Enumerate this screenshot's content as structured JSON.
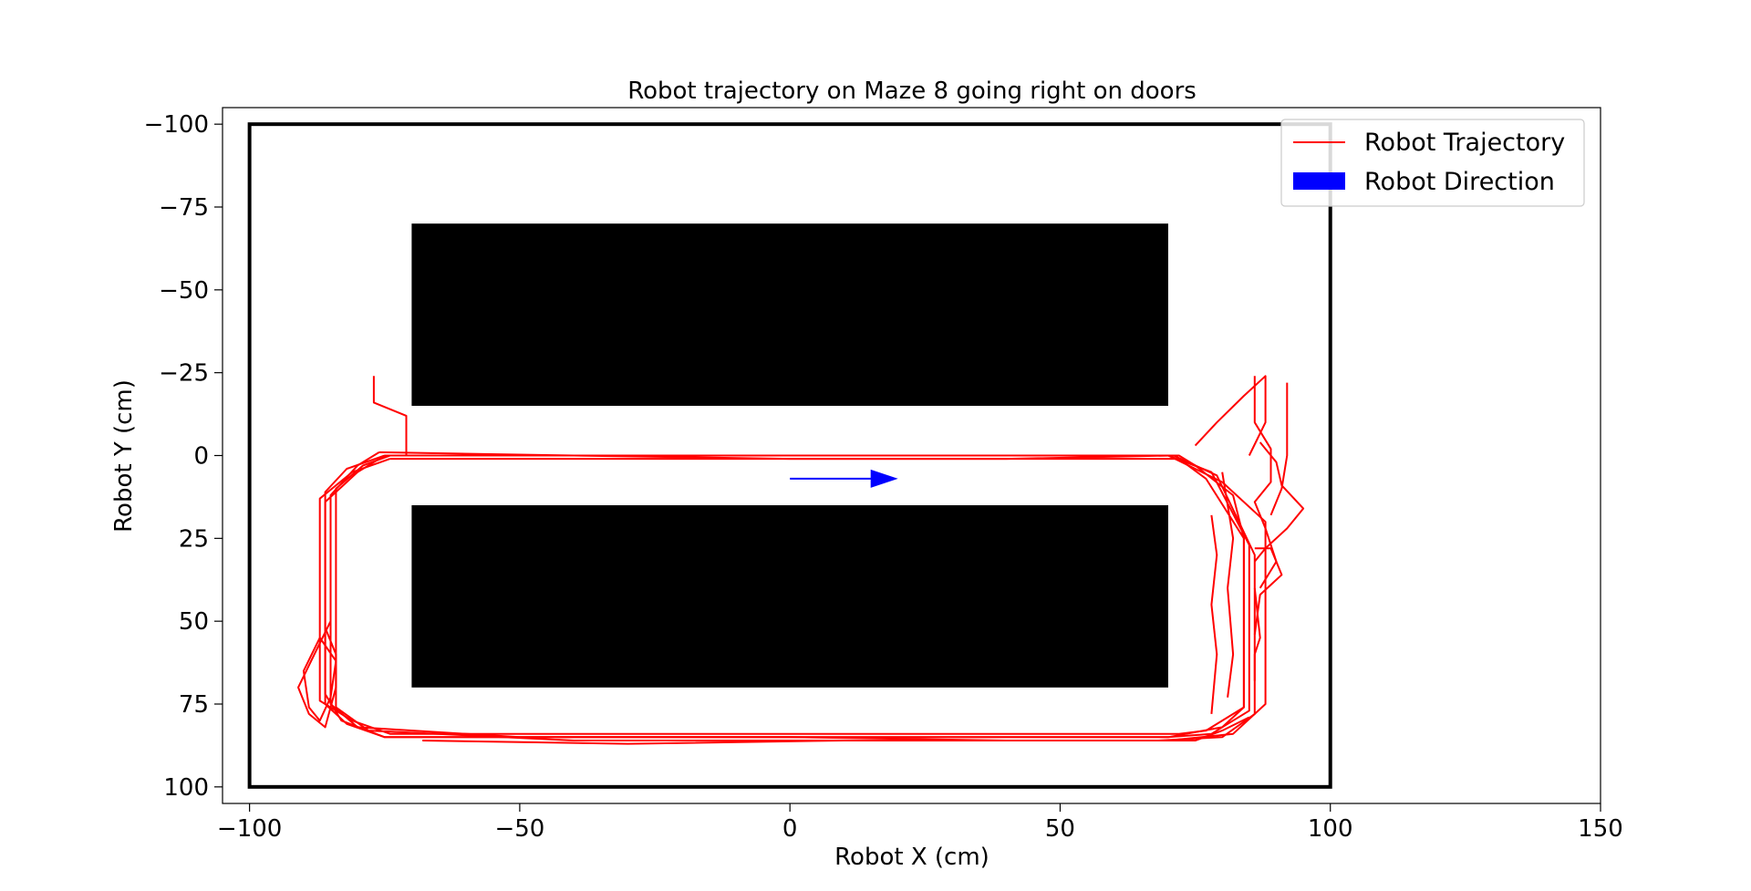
{
  "chart_data": {
    "type": "line",
    "title": "Robot trajectory on Maze 8 going right on doors",
    "xlabel": "Robot X (cm)",
    "ylabel": "Robot Y (cm)",
    "xlim": [
      -105,
      150
    ],
    "ylim": [
      105,
      -105
    ],
    "y_inverted": true,
    "xticks": [
      -100,
      -50,
      0,
      50,
      100,
      150
    ],
    "xtick_labels": [
      "−100",
      "−50",
      "0",
      "50",
      "100",
      "150"
    ],
    "yticks": [
      -100,
      -75,
      -50,
      -25,
      0,
      25,
      50,
      75,
      100
    ],
    "ytick_labels": [
      "−100",
      "−75",
      "−50",
      "−25",
      "0",
      "25",
      "50",
      "75",
      "100"
    ],
    "grid": false,
    "legend": {
      "placement": "top-right",
      "entries": [
        "Robot Trajectory",
        "Robot Direction"
      ]
    },
    "maze": {
      "boundary": {
        "x": [
          -100,
          100
        ],
        "y": [
          -100,
          100
        ]
      },
      "obstacles": [
        {
          "x": [
            -70,
            70
          ],
          "y": [
            -70,
            -15
          ]
        },
        {
          "x": [
            -70,
            70
          ],
          "y": [
            15,
            70
          ]
        }
      ]
    },
    "direction_arrow": {
      "x0": 0,
      "y0": 7,
      "x1": 20,
      "y1": 7
    },
    "series": [
      {
        "name": "Robot Trajectory",
        "color": "#ff0000",
        "x": [
          -77,
          -77,
          -71,
          -71,
          -71
        ],
        "y": [
          -24,
          -16,
          -12,
          -5,
          0
        ]
      },
      {
        "name": "Robot Trajectory",
        "color": "#ff0000",
        "x": [
          -75,
          70,
          78,
          85,
          85,
          78,
          70,
          -75,
          -82,
          -86,
          -86,
          -82,
          -75
        ],
        "y": [
          0,
          0,
          5,
          27,
          77,
          84,
          85,
          85,
          81,
          75,
          11,
          4,
          0
        ]
      },
      {
        "name": "Robot Trajectory",
        "color": "#ff0000",
        "x": [
          -76,
          -40,
          0,
          40,
          71,
          79,
          86,
          86,
          80,
          68,
          40,
          0,
          -50,
          -80,
          -85,
          -85,
          -80,
          -76
        ],
        "y": [
          -1,
          0,
          1,
          1,
          0,
          6,
          30,
          78,
          85,
          86,
          86,
          85,
          85,
          82,
          75,
          12,
          3,
          -1
        ]
      },
      {
        "name": "Robot Trajectory",
        "color": "#ff0000",
        "x": [
          -74,
          72,
          77,
          84,
          84,
          77,
          72,
          -74,
          -81,
          -87,
          -87,
          -81,
          -74
        ],
        "y": [
          1,
          1,
          7,
          25,
          76,
          83,
          84,
          84,
          80,
          74,
          13,
          5,
          1
        ]
      },
      {
        "name": "Robot Trajectory",
        "color": "#ff0000",
        "x": [
          -74,
          70,
          80,
          88,
          88,
          82,
          70,
          30,
          -40,
          -78,
          -84,
          -84,
          -79,
          -74
        ],
        "y": [
          0,
          0,
          8,
          20,
          75,
          84,
          86,
          86,
          86,
          83,
          76,
          10,
          3,
          0
        ]
      },
      {
        "name": "Robot Trajectory",
        "color": "#ff0000",
        "x": [
          -75,
          0,
          72,
          75,
          82,
          84,
          84,
          80,
          70,
          -75,
          -83,
          -86,
          -86,
          -80,
          -75
        ],
        "y": [
          0,
          0,
          0,
          3,
          12,
          25,
          76,
          82,
          85,
          85,
          80,
          72,
          14,
          5,
          0
        ]
      },
      {
        "name": "Robot Trajectory",
        "color": "#ff0000",
        "x": [
          -85,
          -88,
          -91,
          -89,
          -86,
          -85,
          -84,
          -84,
          -86
        ],
        "y": [
          50,
          60,
          70,
          78,
          82,
          76,
          70,
          60,
          52
        ]
      },
      {
        "name": "Robot Trajectory",
        "color": "#ff0000",
        "x": [
          -87,
          -90,
          -89,
          -87,
          -85,
          -84,
          -87
        ],
        "y": [
          55,
          65,
          76,
          80,
          73,
          62,
          55
        ]
      },
      {
        "name": "Robot Trajectory",
        "color": "#ff0000",
        "x": [
          75,
          79,
          84,
          88,
          88,
          85
        ],
        "y": [
          -3,
          -10,
          -18,
          -24,
          -10,
          0
        ]
      },
      {
        "name": "Robot Trajectory",
        "color": "#ff0000",
        "x": [
          86,
          86,
          89,
          89,
          86,
          88,
          90,
          87
        ],
        "y": [
          -24,
          -10,
          -2,
          8,
          14,
          22,
          32,
          40
        ]
      },
      {
        "name": "Robot Trajectory",
        "color": "#ff0000",
        "x": [
          92,
          92,
          91,
          89
        ],
        "y": [
          -22,
          0,
          10,
          18
        ]
      },
      {
        "name": "Robot Trajectory",
        "color": "#ff0000",
        "x": [
          87,
          90,
          91,
          95,
          92,
          88,
          86
        ],
        "y": [
          -4,
          2,
          9,
          16,
          22,
          28,
          32
        ]
      },
      {
        "name": "Robot Trajectory",
        "color": "#ff0000",
        "x": [
          86,
          89,
          91,
          87,
          86
        ],
        "y": [
          28,
          28,
          36,
          42,
          54
        ]
      },
      {
        "name": "Robot Trajectory",
        "color": "#ff0000",
        "x": [
          80,
          82,
          81,
          82,
          81
        ],
        "y": [
          5,
          25,
          40,
          60,
          73
        ]
      },
      {
        "name": "Robot Trajectory",
        "color": "#ff0000",
        "x": [
          78,
          79,
          78,
          79,
          78
        ],
        "y": [
          18,
          30,
          45,
          60,
          78
        ]
      },
      {
        "name": "Robot Trajectory",
        "color": "#ff0000",
        "x": [
          86,
          87,
          86,
          86
        ],
        "y": [
          40,
          55,
          60,
          68
        ]
      },
      {
        "name": "Robot Trajectory",
        "color": "#ff0000",
        "x": [
          60,
          75,
          80,
          85
        ],
        "y": [
          86,
          86,
          83,
          79
        ]
      },
      {
        "name": "Robot Trajectory",
        "color": "#ff0000",
        "x": [
          -68,
          -30,
          10
        ],
        "y": [
          86,
          87,
          86
        ]
      }
    ]
  }
}
